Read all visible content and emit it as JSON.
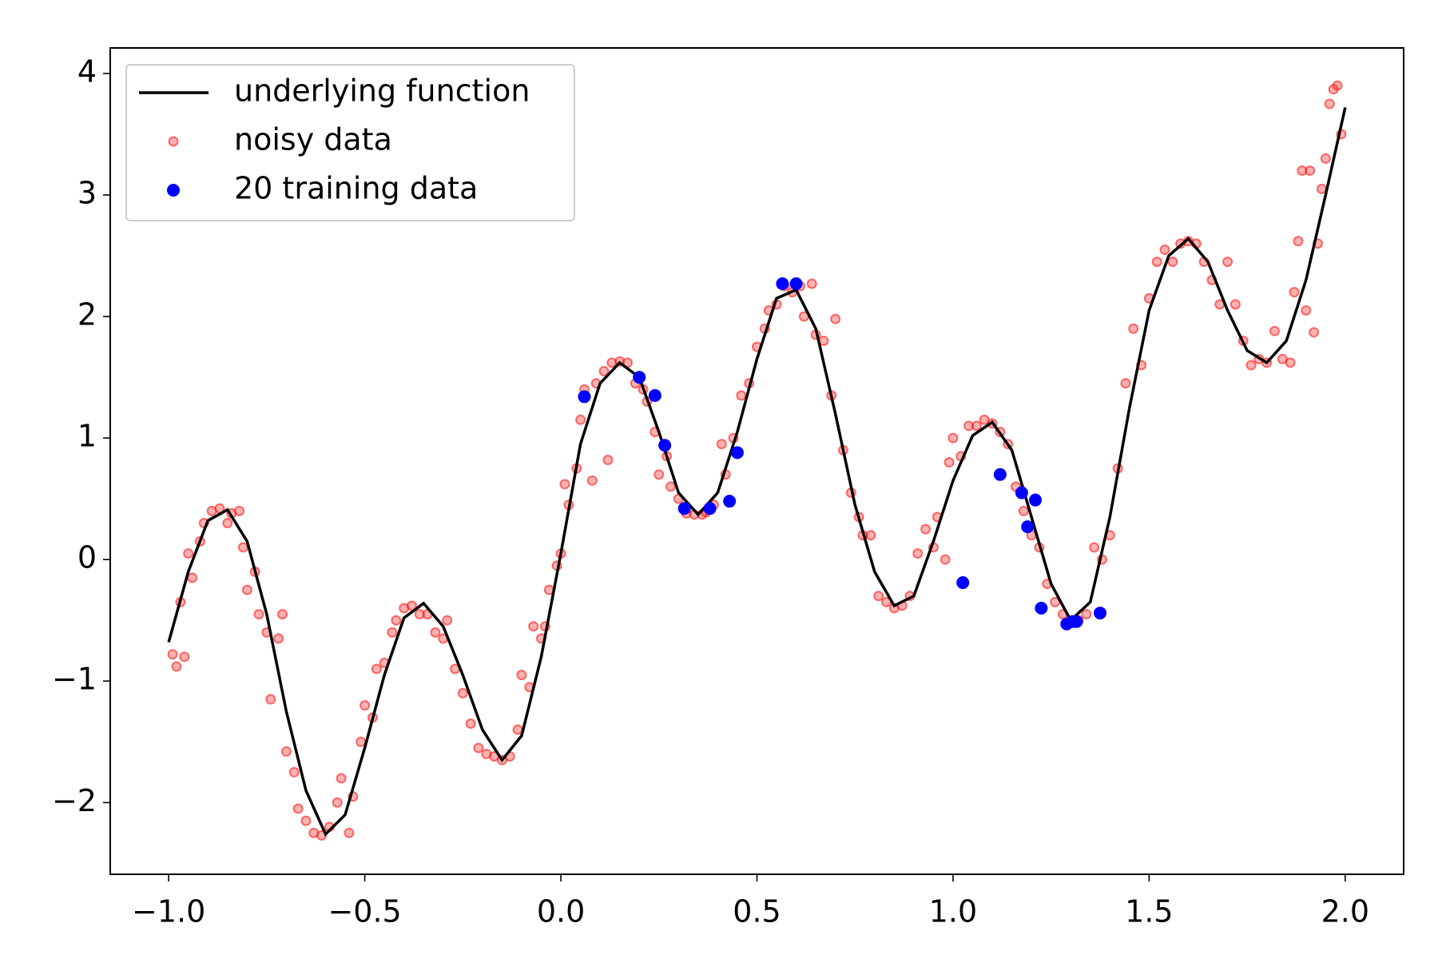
{
  "chart_data": {
    "type": "line",
    "legend": "upper left",
    "xlim": [
      -1.149,
      2.149
    ],
    "ylim": [
      -2.59,
      4.21
    ],
    "xticks": [
      {
        "value": -1.0,
        "label": "−1.0"
      },
      {
        "value": -0.5,
        "label": "−0.5"
      },
      {
        "value": 0.0,
        "label": "0.0"
      },
      0.5,
      {
        "value": 1.0,
        "label": "1.0"
      },
      1.5,
      {
        "value": 2.0,
        "label": "2.0"
      }
    ],
    "yticks": [
      {
        "value": -2,
        "label": "−2"
      },
      {
        "value": -1,
        "label": "−1"
      },
      0,
      1,
      2,
      3,
      4
    ],
    "series": [
      {
        "name": "underlying function",
        "color": "#000000",
        "style": "line",
        "x": [
          -1.0,
          -0.95,
          -0.9,
          -0.85,
          -0.8,
          -0.75,
          -0.7,
          -0.65,
          -0.6,
          -0.55,
          -0.5,
          -0.45,
          -0.4,
          -0.35,
          -0.3,
          -0.25,
          -0.2,
          -0.15,
          -0.1,
          -0.05,
          0.0,
          0.05,
          0.1,
          0.15,
          0.2,
          0.25,
          0.3,
          0.35,
          0.4,
          0.45,
          0.5,
          0.55,
          0.6,
          0.65,
          0.7,
          0.75,
          0.8,
          0.85,
          0.9,
          0.95,
          1.0,
          1.05,
          1.1,
          1.15,
          1.2,
          1.25,
          1.3,
          1.35,
          1.4,
          1.45,
          1.5,
          1.55,
          1.6,
          1.65,
          1.7,
          1.75,
          1.8,
          1.85,
          1.9,
          1.95,
          2.0
        ],
        "y": [
          -0.68,
          -0.1,
          0.32,
          0.41,
          0.15,
          -0.45,
          -1.25,
          -1.9,
          -2.26,
          -2.1,
          -1.55,
          -0.95,
          -0.48,
          -0.36,
          -0.55,
          -0.95,
          -1.4,
          -1.65,
          -1.45,
          -0.8,
          0.05,
          0.95,
          1.45,
          1.62,
          1.5,
          1.05,
          0.55,
          0.37,
          0.55,
          1.05,
          1.65,
          2.15,
          2.22,
          1.9,
          1.2,
          0.45,
          -0.1,
          -0.38,
          -0.3,
          0.15,
          0.65,
          1.02,
          1.13,
          0.9,
          0.35,
          -0.2,
          -0.5,
          -0.35,
          0.35,
          1.25,
          2.05,
          2.5,
          2.64,
          2.45,
          2.05,
          1.72,
          1.62,
          1.8,
          2.3,
          3.0,
          3.72
        ]
      },
      {
        "name": "noisy data",
        "color": "#ff0000",
        "style": "markers",
        "alpha": 0.3,
        "x": [
          -0.99,
          -0.98,
          -0.96,
          -0.97,
          -0.95,
          -0.94,
          -0.92,
          -0.91,
          -0.89,
          -0.87,
          -0.85,
          -0.84,
          -0.82,
          -0.81,
          -0.8,
          -0.78,
          -0.77,
          -0.75,
          -0.74,
          -0.72,
          -0.71,
          -0.7,
          -0.68,
          -0.67,
          -0.65,
          -0.63,
          -0.61,
          -0.59,
          -0.57,
          -0.56,
          -0.54,
          -0.53,
          -0.51,
          -0.5,
          -0.48,
          -0.47,
          -0.45,
          -0.43,
          -0.42,
          -0.4,
          -0.38,
          -0.36,
          -0.34,
          -0.32,
          -0.3,
          -0.29,
          -0.27,
          -0.25,
          -0.23,
          -0.21,
          -0.19,
          -0.17,
          -0.15,
          -0.13,
          -0.11,
          -0.1,
          -0.08,
          -0.07,
          -0.05,
          -0.04,
          -0.03,
          -0.01,
          0.0,
          0.01,
          0.02,
          0.04,
          0.05,
          0.06,
          0.08,
          0.09,
          0.11,
          0.12,
          0.13,
          0.15,
          0.17,
          0.19,
          0.21,
          0.22,
          0.24,
          0.25,
          0.27,
          0.28,
          0.3,
          0.32,
          0.34,
          0.36,
          0.37,
          0.39,
          0.41,
          0.42,
          0.44,
          0.46,
          0.48,
          0.5,
          0.52,
          0.53,
          0.55,
          0.57,
          0.59,
          0.61,
          0.62,
          0.64,
          0.65,
          0.67,
          0.69,
          0.7,
          0.72,
          0.74,
          0.76,
          0.77,
          0.79,
          0.81,
          0.83,
          0.85,
          0.87,
          0.89,
          0.91,
          0.93,
          0.95,
          0.96,
          0.98,
          0.99,
          1.0,
          1.02,
          1.04,
          1.06,
          1.08,
          1.1,
          1.12,
          1.14,
          1.16,
          1.18,
          1.2,
          1.22,
          1.24,
          1.26,
          1.28,
          1.3,
          1.32,
          1.34,
          1.36,
          1.38,
          1.4,
          1.42,
          1.44,
          1.46,
          1.48,
          1.5,
          1.52,
          1.54,
          1.56,
          1.58,
          1.6,
          1.62,
          1.64,
          1.66,
          1.68,
          1.7,
          1.72,
          1.74,
          1.76,
          1.78,
          1.8,
          1.82,
          1.84,
          1.86,
          1.87,
          1.88,
          1.89,
          1.9,
          1.91,
          1.92,
          1.93,
          1.94,
          1.95,
          1.96,
          1.97,
          1.98,
          1.99
        ],
        "y": [
          -0.78,
          -0.88,
          -0.8,
          -0.35,
          0.05,
          -0.15,
          0.15,
          0.3,
          0.4,
          0.42,
          0.3,
          0.38,
          0.4,
          0.1,
          -0.25,
          -0.1,
          -0.45,
          -0.6,
          -1.15,
          -0.65,
          -0.45,
          -1.58,
          -1.75,
          -2.05,
          -2.15,
          -2.25,
          -2.27,
          -2.2,
          -2.0,
          -1.8,
          -2.25,
          -1.95,
          -1.5,
          -1.2,
          -1.3,
          -0.9,
          -0.85,
          -0.6,
          -0.5,
          -0.4,
          -0.38,
          -0.45,
          -0.45,
          -0.6,
          -0.65,
          -0.5,
          -0.9,
          -1.1,
          -1.35,
          -1.55,
          -1.6,
          -1.62,
          -1.65,
          -1.62,
          -1.4,
          -0.95,
          -1.05,
          -0.55,
          -0.65,
          -0.55,
          -0.25,
          -0.05,
          0.05,
          0.62,
          0.45,
          0.75,
          1.15,
          1.4,
          0.65,
          1.45,
          1.55,
          0.82,
          1.62,
          1.63,
          1.62,
          1.45,
          1.4,
          1.3,
          1.05,
          0.7,
          0.85,
          0.6,
          0.5,
          0.38,
          0.37,
          0.37,
          0.39,
          0.45,
          0.95,
          0.7,
          1.0,
          1.35,
          1.45,
          1.75,
          1.9,
          2.05,
          2.1,
          2.25,
          2.2,
          2.25,
          2.0,
          2.27,
          1.85,
          1.8,
          1.35,
          1.98,
          0.9,
          0.55,
          0.35,
          0.2,
          0.2,
          -0.3,
          -0.35,
          -0.4,
          -0.38,
          -0.3,
          0.05,
          0.25,
          0.1,
          0.35,
          0.0,
          0.8,
          1.0,
          0.85,
          1.1,
          1.1,
          1.15,
          1.12,
          1.05,
          0.95,
          0.6,
          0.4,
          0.2,
          0.1,
          -0.2,
          -0.35,
          -0.45,
          -0.52,
          -0.5,
          -0.45,
          0.1,
          0.0,
          0.2,
          0.75,
          1.45,
          1.9,
          1.6,
          2.15,
          2.45,
          2.55,
          2.45,
          2.6,
          2.62,
          2.6,
          2.45,
          2.3,
          2.1,
          2.45,
          2.1,
          1.8,
          1.6,
          1.65,
          1.62,
          1.88,
          1.65,
          1.62,
          2.2,
          2.62,
          3.2,
          2.05,
          3.2,
          1.87,
          2.6,
          3.05,
          3.3,
          3.75,
          3.87,
          3.9,
          3.5
        ]
      },
      {
        "name": "20 training data",
        "color": "#0000ff",
        "style": "markers",
        "x": [
          0.06,
          0.2,
          0.24,
          0.265,
          0.315,
          0.38,
          0.43,
          0.45,
          0.565,
          0.6,
          1.025,
          1.12,
          1.175,
          1.19,
          1.21,
          1.225,
          1.29,
          1.305,
          1.315,
          1.375
        ],
        "y": [
          1.34,
          1.5,
          1.35,
          0.94,
          0.42,
          0.42,
          0.48,
          0.88,
          2.27,
          2.27,
          -0.19,
          0.7,
          0.55,
          0.27,
          0.49,
          -0.4,
          -0.53,
          -0.51,
          -0.51,
          -0.44
        ]
      }
    ]
  }
}
